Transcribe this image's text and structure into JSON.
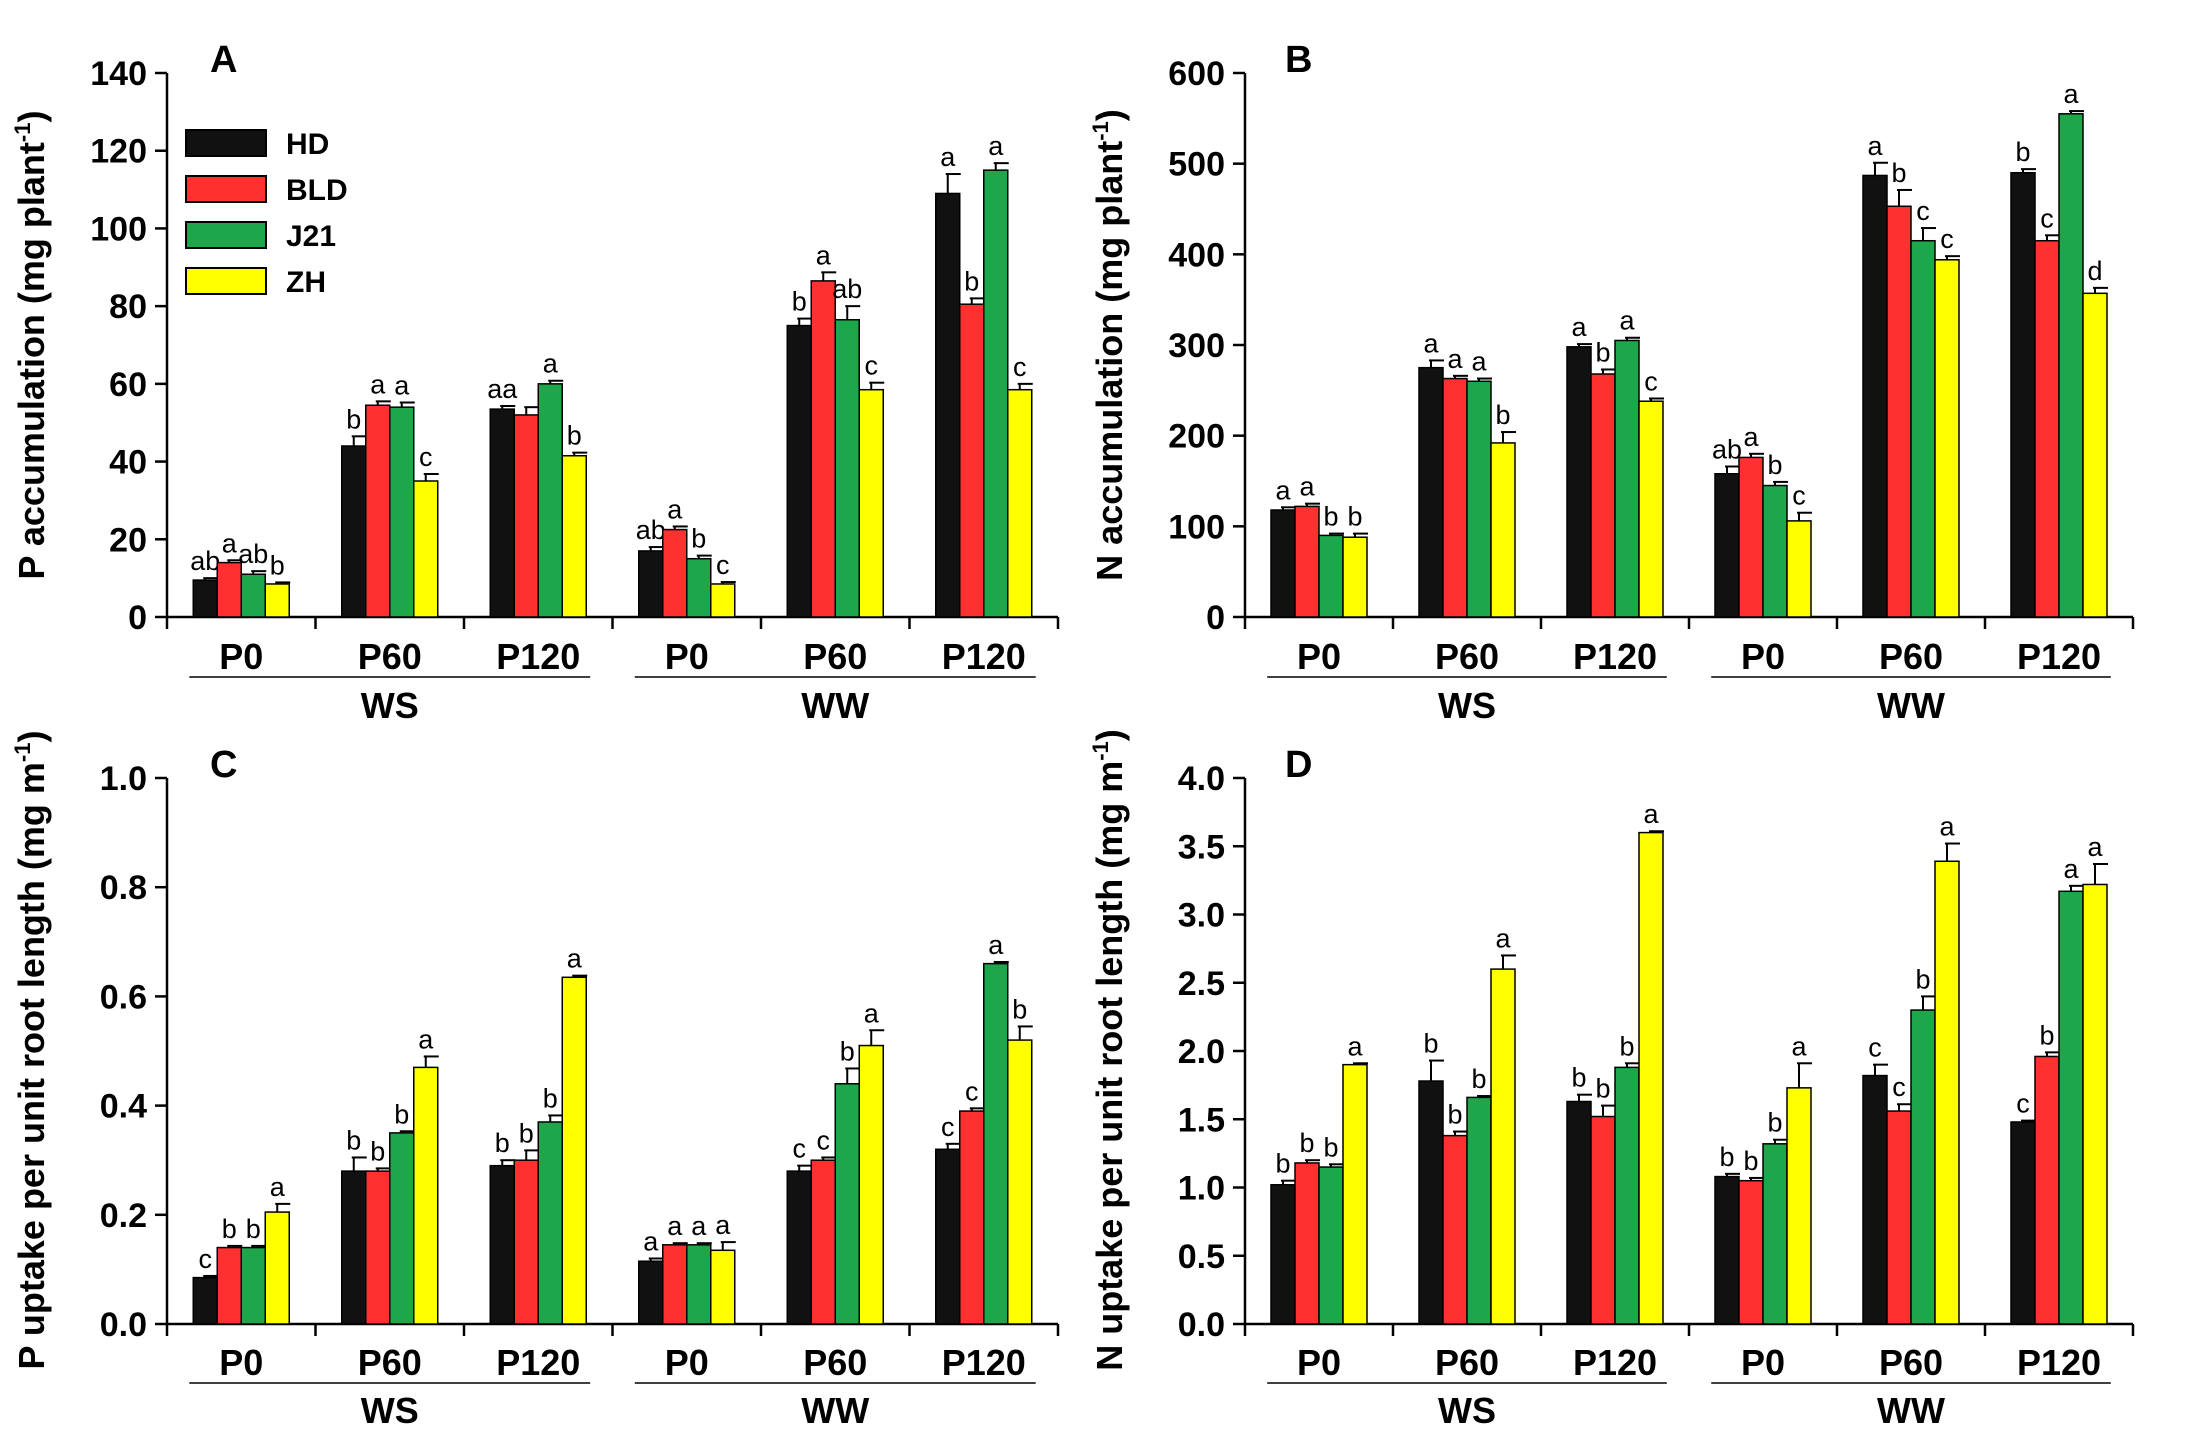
{
  "chart_data": [
    {
      "panel": "A",
      "type": "bar",
      "ylabel": "P accumulation (mg plant",
      "ylabel_sup": "-1",
      "ylabel_close": ")",
      "ylim": [
        0,
        140
      ],
      "yticks": [
        "0",
        "20",
        "40",
        "60",
        "80",
        "100",
        "120",
        "140"
      ],
      "categories": [
        "P0",
        "P60",
        "P120",
        "P0",
        "P60",
        "P120"
      ],
      "groups": [
        "WS",
        "WW"
      ],
      "legend": true,
      "series": [
        {
          "name": "HD",
          "color": "#111111",
          "values": [
            9.5,
            44,
            53.5,
            17,
            75,
            109
          ],
          "errors": [
            0.5,
            2.5,
            0.8,
            1,
            1.8,
            5
          ],
          "letters": [
            "ab",
            "b",
            "aa",
            "ab",
            "b",
            "a"
          ]
        },
        {
          "name": "BLD",
          "color": "#ff3030",
          "values": [
            14,
            54.5,
            52,
            22.5,
            86.5,
            80.5
          ],
          "errors": [
            0.6,
            1,
            2,
            0.8,
            2.2,
            1.5
          ],
          "letters": [
            "a",
            "a",
            "",
            "a",
            "a",
            "b"
          ]
        },
        {
          "name": "J21",
          "color": "#1ea64a",
          "values": [
            11,
            54,
            60,
            15,
            76.5,
            115
          ],
          "errors": [
            0.8,
            1.2,
            0.8,
            0.8,
            3.5,
            1.8
          ],
          "letters": [
            "ab",
            "a",
            "a",
            "b",
            "ab",
            "a"
          ]
        },
        {
          "name": "ZH",
          "color": "#ffff00",
          "values": [
            8.5,
            35,
            41.5,
            8.5,
            58.5,
            58.5
          ],
          "errors": [
            0.4,
            1.8,
            0.8,
            0.5,
            1.8,
            1.5
          ],
          "letters": [
            "b",
            "c",
            "b",
            "c",
            "c",
            "c"
          ]
        }
      ]
    },
    {
      "panel": "B",
      "type": "bar",
      "ylabel": "N accumulation (mg plant",
      "ylabel_sup": "-1",
      "ylabel_close": ")",
      "ylim": [
        0,
        600
      ],
      "yticks": [
        "0",
        "100",
        "200",
        "300",
        "400",
        "500",
        "600"
      ],
      "categories": [
        "P0",
        "P60",
        "P120",
        "P0",
        "P60",
        "P120"
      ],
      "groups": [
        "WS",
        "WW"
      ],
      "legend": false,
      "series": [
        {
          "name": "HD",
          "color": "#111111",
          "values": [
            118,
            275,
            298,
            158,
            487,
            490
          ],
          "errors": [
            3,
            8,
            3,
            8,
            14,
            4
          ],
          "letters": [
            "a",
            "a",
            "a",
            "ab",
            "a",
            "b"
          ]
        },
        {
          "name": "BLD",
          "color": "#ff3030",
          "values": [
            122,
            263,
            268,
            176,
            453,
            415
          ],
          "errors": [
            3,
            3,
            5,
            4,
            18,
            6
          ],
          "letters": [
            "a",
            "a",
            "b",
            "a",
            "b",
            "c"
          ]
        },
        {
          "name": "J21",
          "color": "#1ea64a",
          "values": [
            90,
            260,
            305,
            145,
            415,
            555
          ],
          "errors": [
            2,
            3,
            3,
            4,
            14,
            3
          ],
          "letters": [
            "b",
            "a",
            "a",
            "b",
            "c",
            "a"
          ]
        },
        {
          "name": "ZH",
          "color": "#ffff00",
          "values": [
            88,
            192,
            238,
            106,
            394,
            357
          ],
          "errors": [
            4,
            12,
            3,
            9,
            4,
            6
          ],
          "letters": [
            "b",
            "b",
            "c",
            "c",
            "c",
            "d"
          ]
        }
      ]
    },
    {
      "panel": "C",
      "type": "bar",
      "ylabel": "P uptake per unit root length (mg m",
      "ylabel_sup": "-1",
      "ylabel_close": ")",
      "ylim": [
        0,
        1.0
      ],
      "yticks": [
        "0.0",
        "0.2",
        "0.4",
        "0.6",
        "0.8",
        "1.0"
      ],
      "categories": [
        "P0",
        "P60",
        "P120",
        "P0",
        "P60",
        "P120"
      ],
      "groups": [
        "WS",
        "WW"
      ],
      "legend": false,
      "series": [
        {
          "name": "HD",
          "color": "#111111",
          "values": [
            0.085,
            0.28,
            0.29,
            0.115,
            0.28,
            0.32
          ],
          "errors": [
            0.003,
            0.025,
            0.01,
            0.005,
            0.01,
            0.01
          ],
          "letters": [
            "c",
            "b",
            "b",
            "a",
            "c",
            "c"
          ]
        },
        {
          "name": "BLD",
          "color": "#ff3030",
          "values": [
            0.14,
            0.28,
            0.3,
            0.145,
            0.3,
            0.39
          ],
          "errors": [
            0.003,
            0.005,
            0.018,
            0.003,
            0.005,
            0.005
          ],
          "letters": [
            "b",
            "b",
            "b",
            "a",
            "c",
            "c"
          ]
        },
        {
          "name": "J21",
          "color": "#1ea64a",
          "values": [
            0.14,
            0.35,
            0.37,
            0.145,
            0.44,
            0.66
          ],
          "errors": [
            0.003,
            0.003,
            0.012,
            0.003,
            0.028,
            0.003
          ],
          "letters": [
            "b",
            "b",
            "b",
            "a",
            "b",
            "a"
          ]
        },
        {
          "name": "ZH",
          "color": "#ffff00",
          "values": [
            0.205,
            0.47,
            0.635,
            0.135,
            0.51,
            0.52
          ],
          "errors": [
            0.015,
            0.02,
            0.003,
            0.015,
            0.028,
            0.025
          ],
          "letters": [
            "a",
            "a",
            "a",
            "a",
            "a",
            "b"
          ]
        }
      ]
    },
    {
      "panel": "D",
      "type": "bar",
      "ylabel": "N uptake per unit root length (mg m",
      "ylabel_sup": "-1",
      "ylabel_close": ")",
      "ylim": [
        0,
        4.0
      ],
      "yticks": [
        "0.0",
        "0.5",
        "1.0",
        "1.5",
        "2.0",
        "2.5",
        "3.0",
        "3.5",
        "4.0"
      ],
      "categories": [
        "P0",
        "P60",
        "P120",
        "P0",
        "P60",
        "P120"
      ],
      "groups": [
        "WS",
        "WW"
      ],
      "legend": false,
      "series": [
        {
          "name": "HD",
          "color": "#111111",
          "values": [
            1.02,
            1.78,
            1.63,
            1.08,
            1.82,
            1.48
          ],
          "errors": [
            0.03,
            0.15,
            0.05,
            0.02,
            0.08,
            0.01
          ],
          "letters": [
            "b",
            "b",
            "b",
            "b",
            "c",
            "c"
          ]
        },
        {
          "name": "BLD",
          "color": "#ff3030",
          "values": [
            1.18,
            1.38,
            1.52,
            1.05,
            1.56,
            1.96
          ],
          "errors": [
            0.02,
            0.03,
            0.08,
            0.02,
            0.05,
            0.03
          ],
          "letters": [
            "b",
            "b",
            "b",
            "b",
            "c",
            "b"
          ]
        },
        {
          "name": "J21",
          "color": "#1ea64a",
          "values": [
            1.15,
            1.66,
            1.88,
            1.32,
            2.3,
            3.17
          ],
          "errors": [
            0.02,
            0.01,
            0.03,
            0.03,
            0.1,
            0.04
          ],
          "letters": [
            "b",
            "b",
            "b",
            "b",
            "b",
            "a"
          ]
        },
        {
          "name": "ZH",
          "color": "#ffff00",
          "values": [
            1.9,
            2.6,
            3.6,
            1.73,
            3.39,
            3.22
          ],
          "errors": [
            0.01,
            0.1,
            0.01,
            0.18,
            0.13,
            0.15
          ],
          "letters": [
            "a",
            "a",
            "a",
            "a",
            "a",
            "a"
          ]
        }
      ]
    }
  ]
}
